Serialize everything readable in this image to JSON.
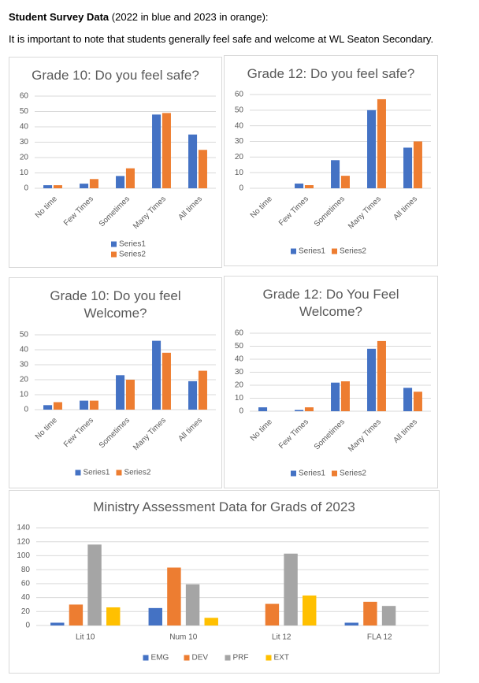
{
  "header": {
    "title": "Student Survey Data",
    "subtitle": "(2022 in blue and 2023 in orange):",
    "text": "It is important to note that students generally feel safe and welcome at WL Seaton Secondary."
  },
  "chart_data": [
    {
      "type": "bar",
      "title": "Grade 10: Do you feel safe?",
      "categories": [
        "No time",
        "Few Times",
        "Sometimes",
        "Many Times",
        "All times"
      ],
      "series": [
        {
          "name": "Series1",
          "color": "#4472c4",
          "values": [
            2,
            3,
            8,
            48,
            35
          ]
        },
        {
          "name": "Series2",
          "color": "#ed7d31",
          "values": [
            2,
            6,
            13,
            49,
            25
          ]
        }
      ],
      "ylim": [
        0,
        60
      ],
      "yticks": [
        0,
        10,
        20,
        30,
        40,
        50,
        60
      ],
      "grid": true,
      "legend": "bottom"
    },
    {
      "type": "bar",
      "title": "Grade 12: Do you feel safe?",
      "categories": [
        "No time",
        "Few Times",
        "Sometimes",
        "Many Times",
        "All times"
      ],
      "series": [
        {
          "name": "Series1",
          "color": "#4472c4",
          "values": [
            0,
            3,
            18,
            50,
            26
          ]
        },
        {
          "name": "Series2",
          "color": "#ed7d31",
          "values": [
            0,
            2,
            8,
            57,
            30
          ]
        }
      ],
      "ylim": [
        0,
        60
      ],
      "yticks": [
        0,
        10,
        20,
        30,
        40,
        50,
        60
      ],
      "grid": true,
      "legend": "bottom"
    },
    {
      "type": "bar",
      "title": "Grade 10: Do you feel Welcome?",
      "categories": [
        "No time",
        "Few Times",
        "Sometimes",
        "Many Times",
        "All times"
      ],
      "series": [
        {
          "name": "Series1",
          "color": "#4472c4",
          "values": [
            3,
            6,
            23,
            46,
            19
          ]
        },
        {
          "name": "Series2",
          "color": "#ed7d31",
          "values": [
            5,
            6,
            20,
            38,
            26
          ]
        }
      ],
      "ylim": [
        0,
        50
      ],
      "yticks": [
        0,
        10,
        20,
        30,
        40,
        50
      ],
      "grid": true,
      "legend": "bottom"
    },
    {
      "type": "bar",
      "title": "Grade 12: Do You Feel Welcome?",
      "categories": [
        "No time",
        "Few Times",
        "Sometimes",
        "Many Times",
        "All times"
      ],
      "series": [
        {
          "name": "Series1",
          "color": "#4472c4",
          "values": [
            3,
            1,
            22,
            48,
            18
          ]
        },
        {
          "name": "Series2",
          "color": "#ed7d31",
          "values": [
            0,
            3,
            23,
            54,
            15
          ]
        }
      ],
      "ylim": [
        0,
        60
      ],
      "yticks": [
        0,
        10,
        20,
        30,
        40,
        50,
        60
      ],
      "grid": true,
      "legend": "bottom"
    },
    {
      "type": "bar",
      "title": "Ministry Assessment Data for Grads of 2023",
      "categories": [
        "Lit 10",
        "Num 10",
        "Lit 12",
        "FLA 12"
      ],
      "series": [
        {
          "name": "EMG",
          "color": "#4472c4",
          "values": [
            4,
            25,
            0,
            4
          ]
        },
        {
          "name": "DEV",
          "color": "#ed7d31",
          "values": [
            30,
            83,
            31,
            34
          ]
        },
        {
          "name": "PRF",
          "color": "#a5a5a5",
          "values": [
            116,
            59,
            103,
            28
          ]
        },
        {
          "name": "EXT",
          "color": "#ffc000",
          "values": [
            26,
            11,
            43,
            0
          ]
        }
      ],
      "ylim": [
        0,
        140
      ],
      "yticks": [
        0,
        20,
        40,
        60,
        80,
        100,
        120,
        140
      ],
      "grid": true,
      "legend": "bottom"
    }
  ]
}
